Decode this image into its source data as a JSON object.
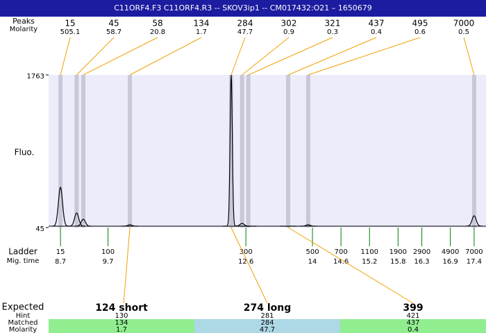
{
  "header": {
    "title": "C11ORF4.F3  C11ORF4.R3 -- SKOV3ip1 -- CM017432:O21 – 1650679"
  },
  "labels": {
    "peaks": "Peaks",
    "molarity": "Molarity",
    "ladder": "Ladder",
    "mig_time": "Mig. time",
    "expected": "Expected",
    "hint": "Hint",
    "matched": "Matched",
    "matched_molarity": "Molarity"
  },
  "chart_data": {
    "type": "electropherogram",
    "ylabel": "Fluo.",
    "xlim": [
      8.45,
      17.65
    ],
    "ylim": [
      45,
      1763
    ],
    "yticks": [
      45,
      1763
    ],
    "trace_color": "#000000",
    "band_color": "#c8c8d8",
    "link_color": "#f0a000",
    "ladder_color": "#008000",
    "peaks": [
      {
        "size": 15,
        "molarity": 505.1,
        "time": 8.7,
        "height": 498
      },
      {
        "size": 45,
        "molarity": 58.7,
        "time": 9.04,
        "height": 209
      },
      {
        "size": 58,
        "molarity": 20.8,
        "time": 9.18,
        "height": 139
      },
      {
        "size": 134,
        "molarity": 1.7,
        "time": 10.16,
        "height": 76
      },
      {
        "size": 284,
        "molarity": 47.7,
        "time": 12.29,
        "height": 1763
      },
      {
        "size": 302,
        "molarity": 0.9,
        "time": 12.52,
        "height": 92
      },
      {
        "size": 321,
        "molarity": 0.3,
        "time": 12.65,
        "height": 60
      },
      {
        "size": 437,
        "molarity": 0.4,
        "time": 13.49,
        "height": 60
      },
      {
        "size": 495,
        "molarity": 0.6,
        "time": 13.91,
        "height": 76
      },
      {
        "size": 7000,
        "molarity": 0.5,
        "time": 17.4,
        "height": 178
      }
    ],
    "ladder": [
      {
        "size": 15,
        "time": 8.7
      },
      {
        "size": 100,
        "time": 9.7
      },
      {
        "size": 300,
        "time": 12.6
      },
      {
        "size": 500,
        "time": 14
      },
      {
        "size": 700,
        "time": 14.6
      },
      {
        "size": 1100,
        "time": 15.2
      },
      {
        "size": 1900,
        "time": 15.8
      },
      {
        "size": 2900,
        "time": 16.3
      },
      {
        "size": 4900,
        "time": 16.9
      },
      {
        "size": 7000,
        "time": 17.4
      }
    ]
  },
  "table": {
    "columns": [
      {
        "expected": "124 short",
        "hint": 130,
        "matched": 134,
        "molarity": 1.7,
        "color": "#90ee90",
        "peak": 3
      },
      {
        "expected": "274 long",
        "hint": 281,
        "matched": 284,
        "molarity": 47.7,
        "color": "#add8e6",
        "peak": 4
      },
      {
        "expected": "399",
        "hint": 421,
        "matched": 437,
        "molarity": 0.4,
        "color": "#90ee90",
        "peak": 7
      }
    ]
  }
}
